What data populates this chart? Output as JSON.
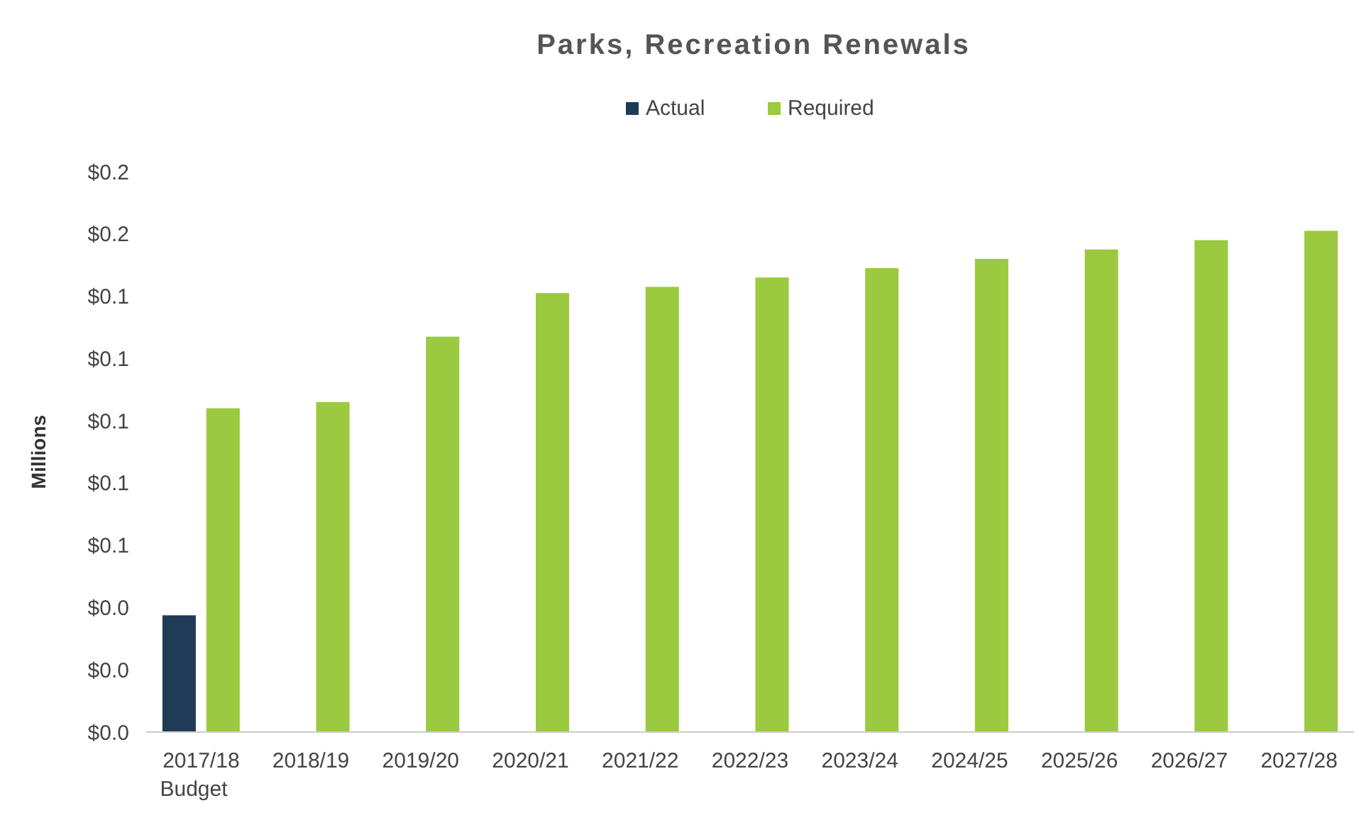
{
  "chart_data": {
    "type": "bar",
    "title": "Parks, Recreation Renewals",
    "ylabel": "Millions",
    "categories": [
      "2017/18\nBudget",
      "2018/19",
      "2019/20",
      "2020/21",
      "2021/22",
      "2022/23",
      "2023/24",
      "2024/25",
      "2025/26",
      "2026/27",
      "2027/28"
    ],
    "series": [
      {
        "name": "Actual",
        "color": "#1f3b57",
        "values": [
          0.0375,
          null,
          null,
          null,
          null,
          null,
          null,
          null,
          null,
          null,
          null
        ]
      },
      {
        "name": "Required",
        "color": "#9bc93f",
        "values": [
          0.104,
          0.106,
          0.127,
          0.141,
          0.143,
          0.146,
          0.149,
          0.152,
          0.155,
          0.158,
          0.161
        ]
      }
    ],
    "ylim": [
      0,
      0.18
    ],
    "yticks": [
      {
        "value": 0,
        "label": "$0.0"
      },
      {
        "value": 0.02,
        "label": "$0.0"
      },
      {
        "value": 0.04,
        "label": "$0.0"
      },
      {
        "value": 0.06,
        "label": "$0.1"
      },
      {
        "value": 0.08,
        "label": "$0.1"
      },
      {
        "value": 0.1,
        "label": "$0.1"
      },
      {
        "value": 0.12,
        "label": "$0.1"
      },
      {
        "value": 0.14,
        "label": "$0.1"
      },
      {
        "value": 0.16,
        "label": "$0.2"
      },
      {
        "value": 0.18,
        "label": "$0.2"
      }
    ],
    "legend": "top",
    "grid": false
  }
}
